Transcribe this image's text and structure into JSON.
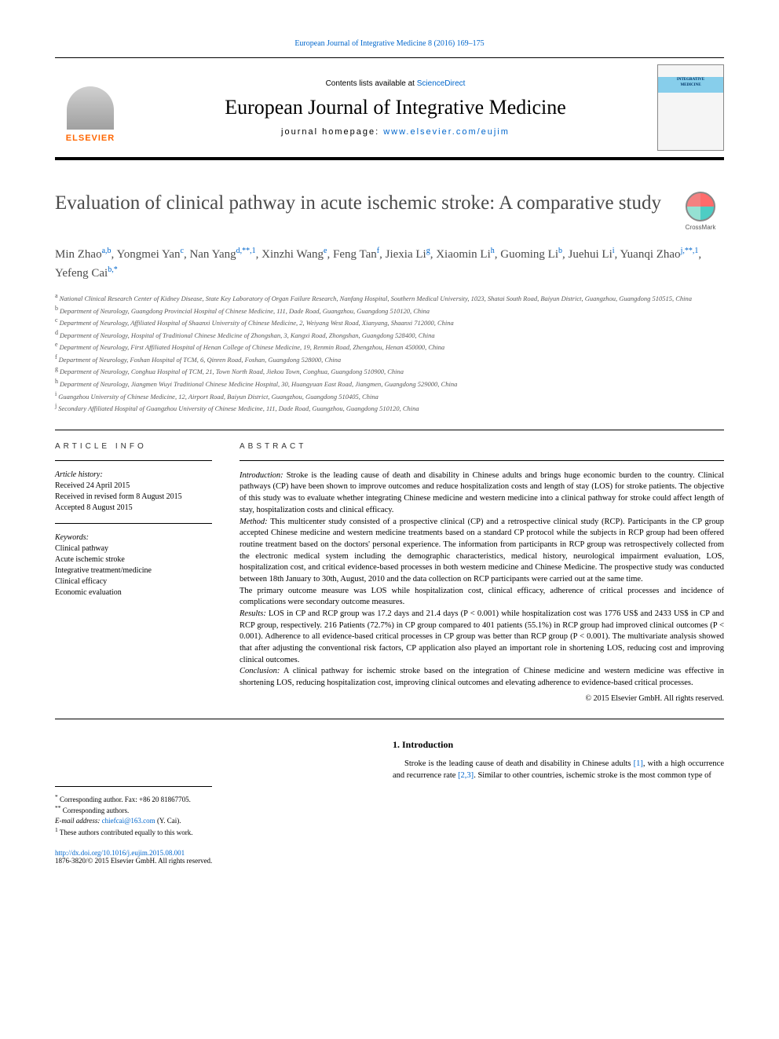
{
  "header": {
    "top_link_text": "European Journal of Integrative Medicine 8 (2016) 169–175",
    "contents_text": "Contents lists available at ",
    "contents_link": "ScienceDirect",
    "journal_name": "European Journal of Integrative Medicine",
    "homepage_label": "journal homepage: ",
    "homepage_url": "www.elsevier.com/eujim",
    "elsevier": "ELSEVIER",
    "cover_line1": "INTEGRATIVE",
    "cover_line2": "MEDICINE",
    "crossmark": "CrossMark"
  },
  "article": {
    "title": "Evaluation of clinical pathway in acute ischemic stroke: A comparative study",
    "authors_html": "Min Zhao<sup>a,b</sup>, Yongmei Yan<sup>c</sup>, Nan Yang<sup>d,**,1</sup>, Xinzhi Wang<sup>e</sup>, Feng Tan<sup>f</sup>, Jiexia Li<sup>g</sup>, Xiaomin Li<sup>h</sup>, Guoming Li<sup>b</sup>, Juehui Li<sup>i</sup>, Yuanqi Zhao<sup>j,**,1</sup>, Yefeng Cai<sup>b,*</sup>",
    "affiliations": [
      {
        "sup": "a",
        "text": "National Clinical Research Center of Kidney Disease, State Key Laboratory of Organ Failure Research, Nanfang Hospital, Southern Medical University, 1023, Shatai South Road, Baiyun District, Guangzhou, Guangdong 510515, China"
      },
      {
        "sup": "b",
        "text": "Department of Neurology, Guangdong Provincial Hospital of Chinese Medicine, 111, Dade Road, Guangzhou, Guangdong 510120, China"
      },
      {
        "sup": "c",
        "text": "Department of Neurology, Affiliated Hospital of Shaanxi University of Chinese Medicine, 2, Weiyang West Road, Xianyang, Shaanxi 712000, China"
      },
      {
        "sup": "d",
        "text": "Department of Neurology, Hospital of Traditional Chinese Medicine of Zhongshan, 3, Kangxi Road, Zhongshan, Guangdong 528400, China"
      },
      {
        "sup": "e",
        "text": "Department of Neurology, First Affiliated Hospital of Henan College of Chinese Medicine, 19, Renmin Road, Zhengzhou, Henan 450000, China"
      },
      {
        "sup": "f",
        "text": "Department of Neurology, Foshan Hospital of TCM, 6, Qinren Road, Foshan, Guangdong 528000, China"
      },
      {
        "sup": "g",
        "text": "Department of Neurology, Conghua Hospital of TCM, 21, Town North Road, Jiekou Town, Conghua, Guangdong 510900, China"
      },
      {
        "sup": "h",
        "text": "Department of Neurology, Jiangmen Wuyi Traditional Chinese Medicine Hospital, 30, Huangyuan East Road, Jiangmen, Guangdong 529000, China"
      },
      {
        "sup": "i",
        "text": "Guangzhou University of Chinese Medicine, 12, Airport Road, Baiyun District, Guangzhou, Guangdong 510405, China"
      },
      {
        "sup": "j",
        "text": "Secondary Affiliated Hospital of Guangzhou University of Chinese Medicine, 111, Dade Road, Guangzhou, Guangdong 510120, China"
      }
    ]
  },
  "info": {
    "header": "ARTICLE INFO",
    "history_label": "Article history:",
    "history": [
      "Received 24 April 2015",
      "Received in revised form 8 August 2015",
      "Accepted 8 August 2015"
    ],
    "keywords_label": "Keywords:",
    "keywords": [
      "Clinical pathway",
      "Acute ischemic stroke",
      "Integrative treatment/medicine",
      "Clinical efficacy",
      "Economic evaluation"
    ]
  },
  "abstract": {
    "header": "ABSTRACT",
    "intro_label": "Introduction:",
    "intro": " Stroke is the leading cause of death and disability in Chinese adults and brings huge economic burden to the country. Clinical pathways (CP) have been shown to improve outcomes and reduce hospitalization costs and length of stay (LOS) for stroke patients. The objective of this study was to evaluate whether integrating Chinese medicine and western medicine into a clinical pathway for stroke could affect length of stay, hospitalization costs and clinical efficacy.",
    "method_label": "Method:",
    "method_p1": " This multicenter study consisted of a prospective clinical (CP) and a retrospective clinical study (RCP). Participants in the CP group accepted Chinese medicine and western medicine treatments based on a standard CP protocol while the subjects in RCP group had been offered routine treatment based on the doctors' personal experience. The information from participants in RCP group was retrospectively collected from the electronic medical system including the demographic characteristics, medical history, neurological impairment evaluation, LOS, hospitalization cost, and critical evidence-based processes in both western medicine and Chinese Medicine. The prospective study was conducted between 18th January to 30th, August, 2010 and the data collection on RCP participants were carried out at the same time.",
    "method_p2": "The primary outcome measure was LOS while hospitalization cost, clinical efficacy, adherence of critical processes and incidence of complications were secondary outcome measures.",
    "results_label": "Results:",
    "results": " LOS in CP and RCP group was 17.2 days and 21.4 days (P < 0.001) while hospitalization cost was 1776 US$ and 2433 US$ in CP and RCP group, respectively. 216 Patients (72.7%) in CP group compared to 401 patients (55.1%) in RCP group had improved clinical outcomes (P < 0.001). Adherence to all evidence-based critical processes in CP group was better than RCP group (P < 0.001). The multivariate analysis showed that after adjusting the conventional risk factors, CP application also played an important role in shortening LOS, reducing cost and improving clinical outcomes.",
    "conclusion_label": "Conclusion:",
    "conclusion": " A clinical pathway for ischemic stroke based on the integration of Chinese medicine and western medicine was effective in shortening LOS, reducing hospitalization cost, improving clinical outcomes and elevating adherence to evidence-based critical processes.",
    "copyright": "© 2015 Elsevier GmbH. All rights reserved."
  },
  "footnotes": {
    "items": [
      {
        "marker": "*",
        "text": "Corresponding author. Fax: +86 20 81867705."
      },
      {
        "marker": "**",
        "text": "Corresponding authors."
      }
    ],
    "email_label": "E-mail address: ",
    "email": "chiefcai@163.com",
    "email_name": " (Y. Cai).",
    "contrib_marker": "1",
    "contrib": " These authors contributed equally to this work."
  },
  "intro_section": {
    "heading": "1. Introduction",
    "para_pre": "Stroke is the leading cause of death and disability in Chinese adults ",
    "ref1": "[1]",
    "para_mid": ", with a high occurrence and recurrence rate ",
    "ref2": "[2,3]",
    "para_post": ". Similar to other countries, ischemic stroke is the most common type of"
  },
  "bottom": {
    "doi": "http://dx.doi.org/10.1016/j.eujim.2015.08.001",
    "issn_line": "1876-3820/© 2015 Elsevier GmbH. All rights reserved."
  },
  "colors": {
    "link": "#0066cc",
    "elsevier_orange": "#ff6600",
    "text_gray": "#4a4a4a"
  }
}
